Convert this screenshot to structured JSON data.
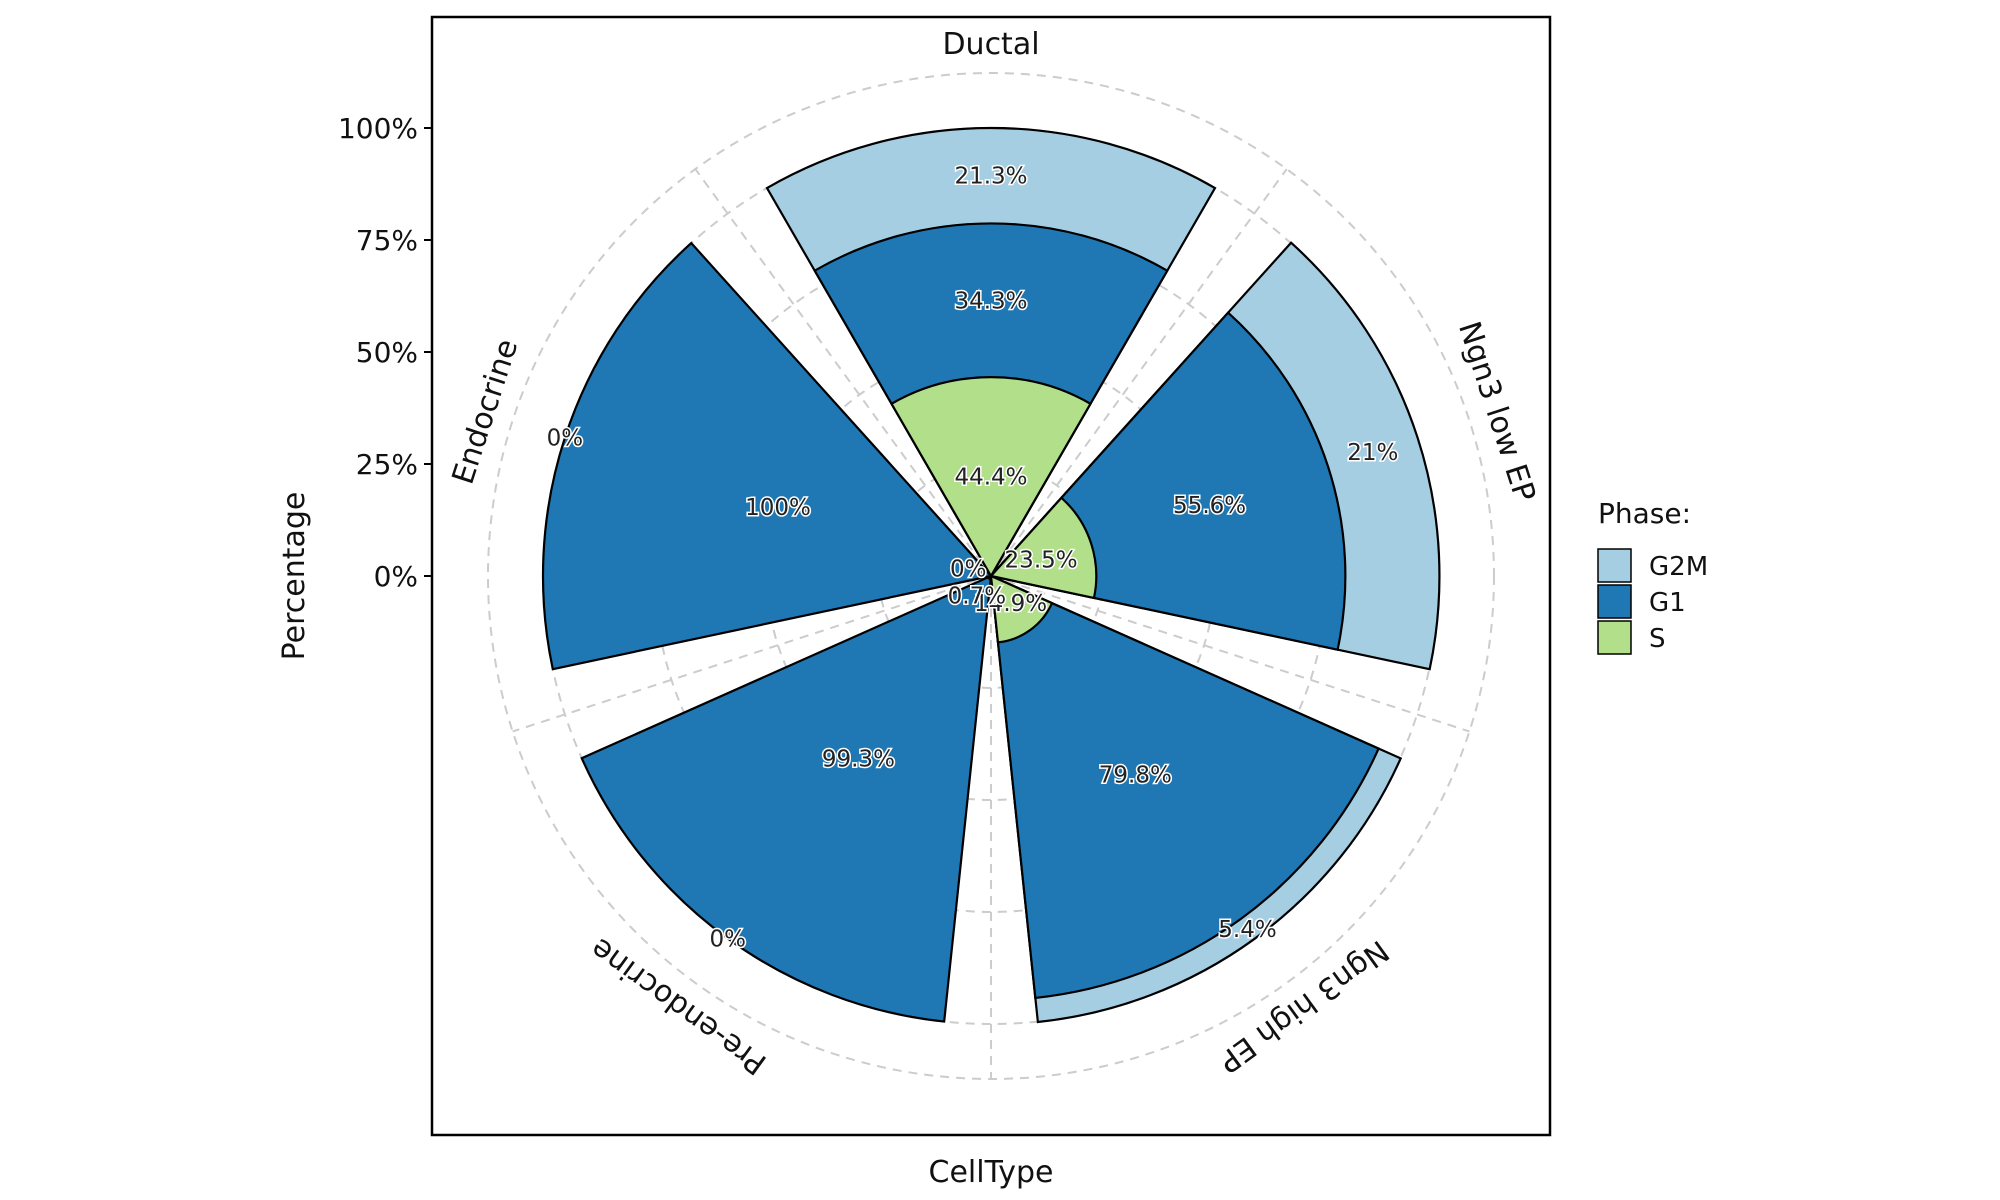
{
  "chart_data": {
    "type": "bar",
    "coord": "polar",
    "stacking": "nested",
    "xlabel": "CellType",
    "ylabel": "Percentage",
    "y_ticks": [
      "0%",
      "25%",
      "50%",
      "75%",
      "100%"
    ],
    "ylim": [
      0,
      100
    ],
    "grid": true,
    "legend": {
      "title": "Phase:",
      "position": "right"
    },
    "categories": [
      "Ductal",
      "Ngn3 low EP",
      "Ngn3 high EP",
      "Pre-endocrine",
      "Endocrine"
    ],
    "series": [
      {
        "name": "G2M",
        "color": "#a6cee3",
        "values": [
          21.3,
          21,
          5.4,
          0,
          0
        ],
        "labels": [
          "21.3%",
          "21%",
          "5.4%",
          "0%",
          "0%"
        ]
      },
      {
        "name": "G1",
        "color": "#1f78b4",
        "values": [
          34.3,
          55.6,
          79.8,
          99.3,
          100
        ],
        "labels": [
          "34.3%",
          "55.6%",
          "79.8%",
          "99.3%",
          "100%"
        ]
      },
      {
        "name": "S",
        "color": "#b2df8a",
        "values": [
          44.4,
          23.5,
          14.9,
          0.7,
          0
        ],
        "labels": [
          "44.4%",
          "23.5%",
          "14.9%",
          "0.7%",
          "0%"
        ]
      }
    ]
  }
}
